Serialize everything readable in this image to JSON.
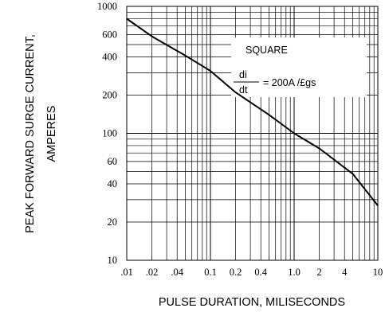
{
  "chart_data": {
    "type": "line",
    "title": "",
    "xlabel": "PULSE DURATION, MILISECONDS",
    "ylabel_line1": "PEAK FORWARD SURGE CURRENT,",
    "ylabel_line2": "AMPERES",
    "xscale": "log",
    "yscale": "log",
    "xlim": [
      0.01,
      10
    ],
    "ylim": [
      10,
      1000
    ],
    "grid": true,
    "x_ticks": [
      ".01",
      ".02",
      ".04",
      "0.1",
      "0.2",
      "0.4",
      "1.0",
      "2",
      "4",
      "10"
    ],
    "y_ticks": [
      "10",
      "20",
      "40",
      "60",
      "100",
      "200",
      "400",
      "600",
      "1000"
    ],
    "annotation": {
      "label": "SQUARE",
      "fraction_num": "di",
      "fraction_den": "dt",
      "value": "= 200A /£gs"
    },
    "series": [
      {
        "x": [
          0.01,
          0.02,
          0.05,
          0.1,
          0.2,
          0.5,
          1,
          2,
          5,
          10
        ],
        "y": [
          800,
          580,
          410,
          310,
          210,
          140,
          100,
          76,
          48,
          27
        ]
      }
    ]
  }
}
